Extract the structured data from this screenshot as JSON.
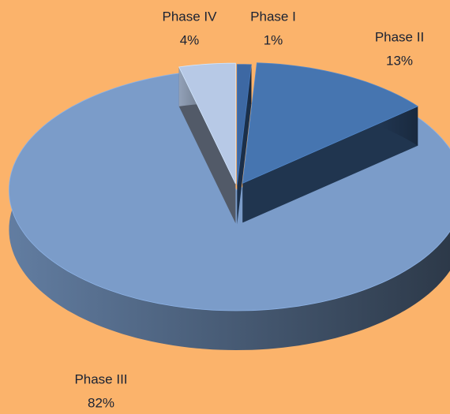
{
  "chart_data": {
    "type": "pie",
    "categories": [
      "Phase I",
      "Phase II",
      "Phase III",
      "Phase IV"
    ],
    "values": [
      1,
      13,
      82,
      4
    ],
    "value_labels": [
      "1%",
      "13%",
      "82%",
      "4%"
    ],
    "colors": [
      "#3d68a3",
      "#4675b0",
      "#7b9cc9",
      "#b7c9e6"
    ]
  }
}
